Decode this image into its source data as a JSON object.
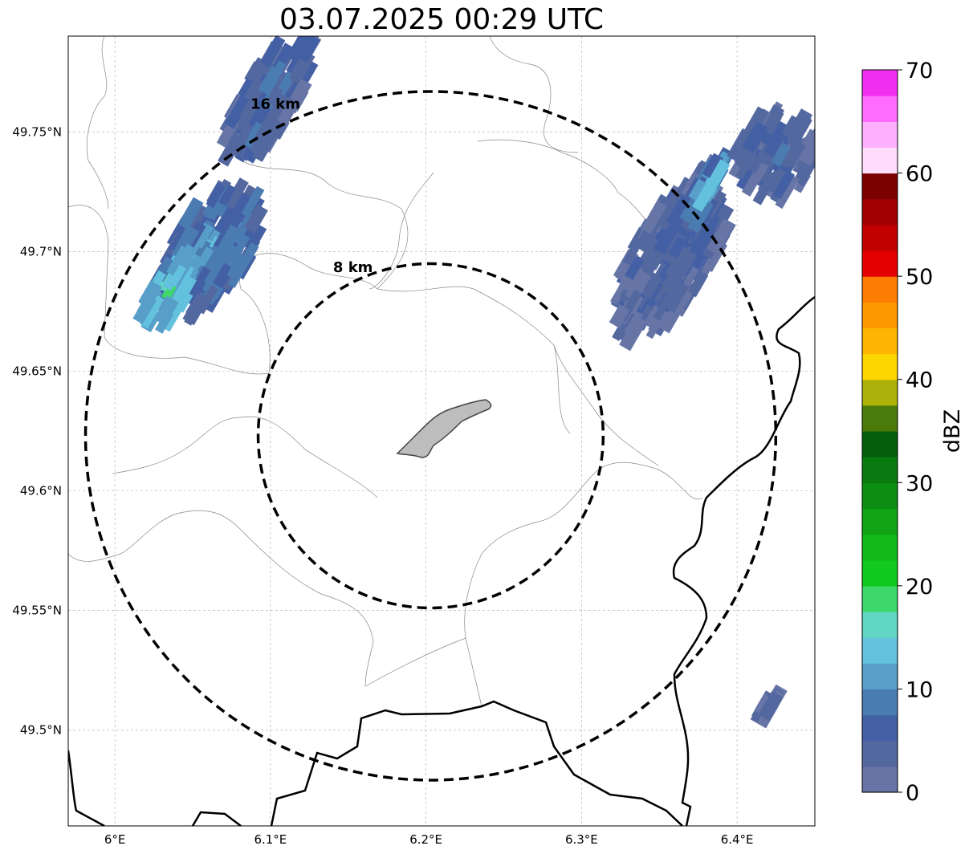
{
  "title": "03.07.2025 00:29 UTC",
  "map": {
    "lon_range": [
      5.97,
      6.45
    ],
    "lat_range": [
      49.46,
      49.79
    ],
    "lon_ticks": [
      {
        "value": 6.0,
        "label": "6°E"
      },
      {
        "value": 6.1,
        "label": "6.1°E"
      },
      {
        "value": 6.2,
        "label": "6.2°E"
      },
      {
        "value": 6.3,
        "label": "6.3°E"
      },
      {
        "value": 6.4,
        "label": "6.4°E"
      }
    ],
    "lat_ticks": [
      {
        "value": 49.75,
        "label": "49.75°N"
      },
      {
        "value": 49.7,
        "label": "49.7°N"
      },
      {
        "value": 49.65,
        "label": "49.65°N"
      },
      {
        "value": 49.6,
        "label": "49.6°N"
      },
      {
        "value": 49.55,
        "label": "49.55°N"
      },
      {
        "value": 49.5,
        "label": "49.5°N"
      }
    ],
    "grid": true,
    "center": {
      "lon": 6.203,
      "lat": 49.623
    },
    "range_rings": [
      {
        "radius_km": 8,
        "label": "8 km"
      },
      {
        "radius_km": 16,
        "label": "16 km"
      }
    ],
    "echo_cells": [
      {
        "lon": 6.06,
        "lat": 49.7,
        "dbz": 12,
        "len": 0.09,
        "wid": 0.05
      },
      {
        "lon": 6.035,
        "lat": 49.683,
        "dbz": 20,
        "len": 0.045,
        "wid": 0.028
      },
      {
        "lon": 6.1,
        "lat": 49.765,
        "dbz": 8,
        "len": 0.09,
        "wid": 0.035
      },
      {
        "lon": 6.36,
        "lat": 49.7,
        "dbz": 6,
        "len": 0.12,
        "wid": 0.05
      },
      {
        "lon": 6.38,
        "lat": 49.725,
        "dbz": 15,
        "len": 0.05,
        "wid": 0.015
      },
      {
        "lon": 6.425,
        "lat": 49.74,
        "dbz": 6,
        "len": 0.05,
        "wid": 0.05
      },
      {
        "lon": 6.42,
        "lat": 49.51,
        "dbz": 4,
        "len": 0.02,
        "wid": 0.006
      }
    ]
  },
  "colorbar": {
    "label": "dBZ",
    "min": 0,
    "max": 70,
    "ticks": [
      0,
      10,
      20,
      30,
      40,
      50,
      60,
      70
    ],
    "colors": [
      "#6674a6",
      "#5468a0",
      "#4460a4",
      "#4a7cb2",
      "#579fc9",
      "#63c1dd",
      "#61d6c5",
      "#3dd76b",
      "#12c91e",
      "#12b918",
      "#10a314",
      "#0b8e12",
      "#087a10",
      "#045e0a",
      "#4a7a0a",
      "#adb20a",
      "#fdd602",
      "#fdb502",
      "#fe9902",
      "#fd7d02",
      "#e30000",
      "#c10000",
      "#a00000",
      "#7d0000",
      "#ffdbfc",
      "#ffafff",
      "#ff6bff",
      "#f030f0"
    ]
  }
}
